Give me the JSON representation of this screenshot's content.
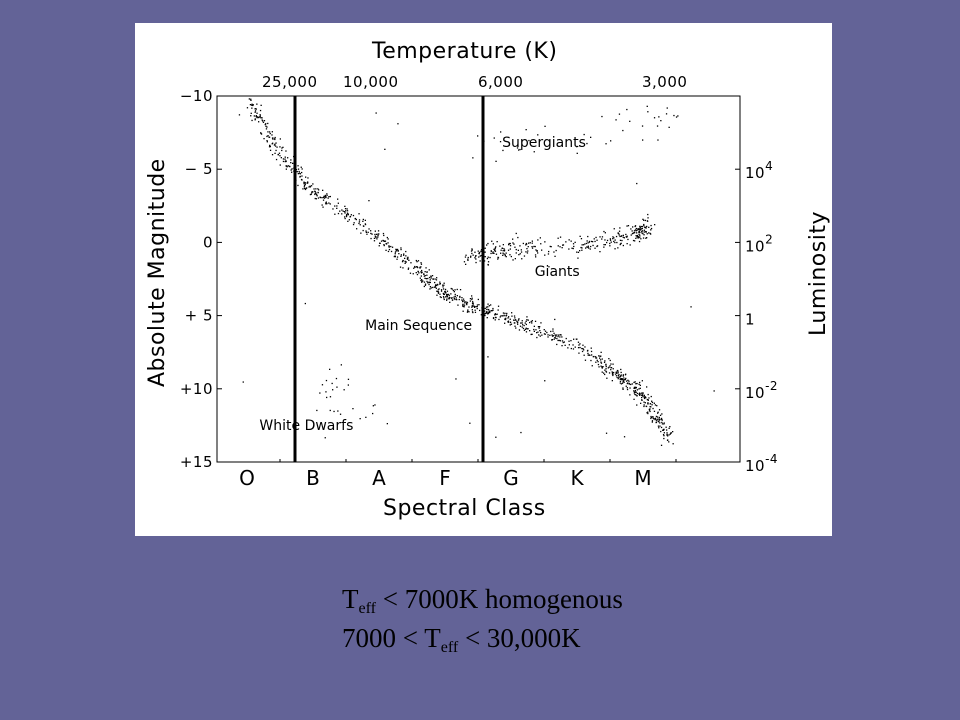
{
  "chart_data": {
    "type": "scatter",
    "title": "Temperature (K)",
    "xlabel": "Spectral Class",
    "ylabel": "Absolute Magnitude",
    "y2label": "Luminosity",
    "top_ticks": [
      "25,000",
      "10,000",
      "6,000",
      "3,000"
    ],
    "left_ticks": [
      "−10",
      "− 5",
      "0",
      "+ 5",
      "+10",
      "+15"
    ],
    "right_ticks": [
      {
        "base": "10",
        "exp": "4"
      },
      {
        "base": "10",
        "exp": "2"
      },
      {
        "base": "1",
        "exp": ""
      },
      {
        "base": "10",
        "exp": "-2"
      },
      {
        "base": "10",
        "exp": "-4"
      }
    ],
    "spectral_classes": [
      "O",
      "B",
      "A",
      "F",
      "G",
      "K",
      "M"
    ],
    "ylim": [
      -10,
      15
    ],
    "y_inverted": true,
    "regions": [
      {
        "name": "Supergiants",
        "x_class": 4.5,
        "y_mag": -6.5
      },
      {
        "name": "Giants",
        "x_class": 4.7,
        "y_mag": 2.3
      },
      {
        "name": "Main Sequence",
        "x_class": 2.6,
        "y_mag": 6.0
      },
      {
        "name": "White Dwarfs",
        "x_class": 0.9,
        "y_mag": 12.8
      }
    ],
    "vertical_lines_temperature_K": [
      25000,
      6500
    ],
    "sequences": {
      "main_sequence": [
        [
          0.05,
          -9.5
        ],
        [
          0.5,
          -6.0
        ],
        [
          1.0,
          -3.5
        ],
        [
          1.8,
          -1.0
        ],
        [
          2.5,
          1.5
        ],
        [
          3.0,
          3.5
        ],
        [
          3.5,
          4.5
        ],
        [
          4.2,
          5.5
        ],
        [
          5.0,
          7.0
        ],
        [
          5.6,
          9.0
        ],
        [
          6.0,
          10.5
        ],
        [
          6.4,
          13.5
        ]
      ],
      "giants": [
        [
          3.3,
          1.0
        ],
        [
          4.0,
          0.3
        ],
        [
          5.0,
          0.2
        ],
        [
          5.8,
          -0.5
        ],
        [
          6.1,
          -1.0
        ]
      ],
      "supergiants": [
        [
          3.5,
          -6.5
        ],
        [
          5.5,
          -7.5
        ],
        [
          6.4,
          -9.0
        ]
      ],
      "white_dwarfs": [
        [
          1.5,
          8.0
        ],
        [
          1.2,
          11.0
        ],
        [
          1.9,
          12.0
        ]
      ]
    }
  },
  "caption": {
    "line1": {
      "sym": "T",
      "sub": "eff",
      "rest": " < 7000K homogenous"
    },
    "line2": {
      "pre": "7000 < T",
      "sub": "eff",
      "rest": " < 30,000K"
    }
  }
}
